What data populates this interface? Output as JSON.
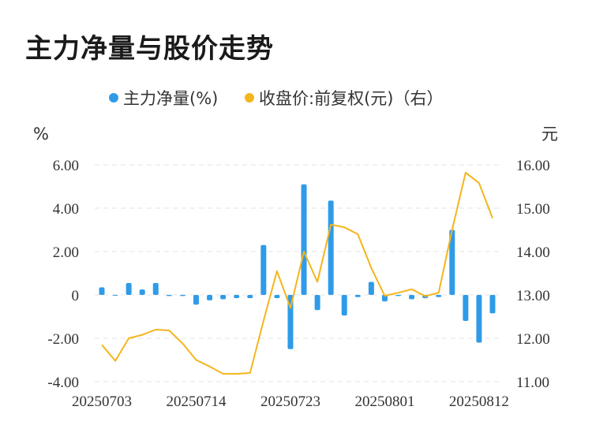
{
  "title": "主力净量与股价走势",
  "chart_data": {
    "type": "bar+line",
    "legend": [
      {
        "name": "主力净量(%)",
        "color": "#2f9be8"
      },
      {
        "name": "收盘价:前复权(元)（右）",
        "color": "#f5b51c"
      }
    ],
    "left_unit": "%",
    "right_unit": "元",
    "left_ticks": [
      "6.00",
      "4.00",
      "2.00",
      "0",
      "-2.00",
      "-4.00"
    ],
    "right_ticks": [
      "16.00",
      "15.00",
      "14.00",
      "13.00",
      "12.00",
      "11.00"
    ],
    "ylim_left": [
      -4,
      6
    ],
    "ylim_right": [
      11,
      16
    ],
    "x_labels": [
      "20250703",
      "20250714",
      "20250723",
      "20250801",
      "20250812"
    ],
    "x_label_index": [
      0,
      7,
      14,
      21,
      28
    ],
    "bar_values": [
      0.35,
      0.0,
      0.55,
      0.25,
      0.55,
      -0.05,
      -0.05,
      -0.45,
      -0.25,
      -0.2,
      -0.15,
      -0.15,
      2.3,
      -0.15,
      -2.5,
      5.1,
      -0.7,
      4.35,
      -0.95,
      -0.1,
      0.6,
      -0.3,
      -0.05,
      -0.2,
      -0.15,
      -0.1,
      3.0,
      -1.2,
      -2.2,
      -0.85
    ],
    "line_values": [
      11.85,
      11.48,
      12.0,
      12.08,
      12.2,
      12.18,
      11.88,
      11.5,
      11.35,
      11.18,
      11.18,
      11.2,
      12.4,
      13.55,
      12.7,
      14.0,
      13.3,
      14.62,
      14.56,
      14.4,
      13.62,
      12.98,
      13.05,
      13.13,
      12.97,
      13.05,
      14.5,
      15.82,
      15.58,
      14.77
    ]
  }
}
